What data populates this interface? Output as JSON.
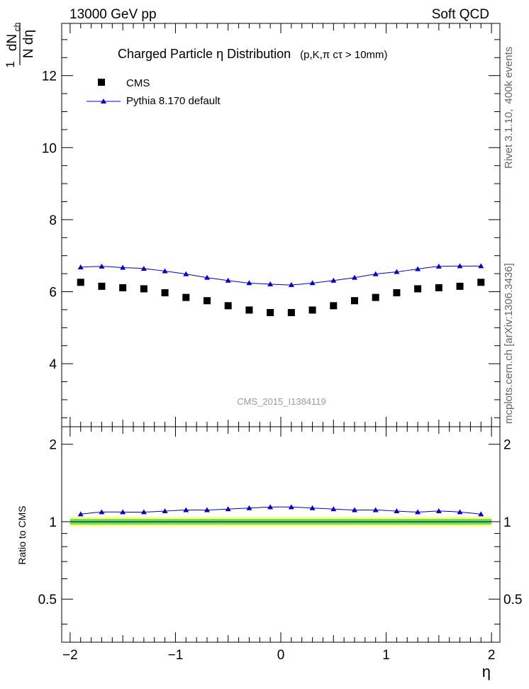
{
  "header": {
    "left": "13000 GeV pp",
    "right": "Soft QCD"
  },
  "side_labels": {
    "top": "Rivet 3.1.10,  400k events",
    "bottom": "mcplots.cern.ch [arXiv:1306.3436]"
  },
  "chart_data": {
    "type": "scatter",
    "title": "Charged Particle  η Distribution",
    "title_note": "(p,K,π cτ > 10mm)",
    "analysis_id": "CMS_2015_I1384119",
    "xlabel": "η",
    "xlim": [
      -2.08,
      2.08
    ],
    "x_ticks": [
      -2,
      -1,
      0,
      1,
      2
    ],
    "x_tick_labels": [
      "−2",
      "−1",
      "0",
      "1",
      "2"
    ],
    "main": {
      "ylabel_num": "1",
      "ylabel_frac_top": "dN",
      "ylabel_frac_sub": "ch",
      "ylabel_frac_bottom": "N dη",
      "ylim": [
        2.25,
        13.45
      ],
      "y_ticks": [
        4,
        6,
        8,
        10,
        12
      ],
      "y_tick_labels": [
        "4",
        "6",
        "8",
        "10",
        "12"
      ]
    },
    "ratio": {
      "ylabel": "Ratio to CMS",
      "ylim": [
        0.34,
        2.34
      ],
      "y_ticks": [
        0.5,
        1,
        2
      ],
      "y_tick_labels": [
        "0.5",
        "1",
        "2"
      ]
    },
    "legend": [
      {
        "name": "CMS",
        "marker": "square"
      },
      {
        "name": "Pythia 8.170 default",
        "marker": "triangle"
      }
    ],
    "x": [
      -1.9,
      -1.7,
      -1.5,
      -1.3,
      -1.1,
      -0.9,
      -0.7,
      -0.5,
      -0.3,
      -0.1,
      0.1,
      0.3,
      0.5,
      0.7,
      0.9,
      1.1,
      1.3,
      1.5,
      1.7,
      1.9
    ],
    "series": [
      {
        "name": "CMS",
        "color": "#000000",
        "values": [
          6.26,
          6.15,
          6.11,
          6.08,
          5.97,
          5.84,
          5.75,
          5.61,
          5.49,
          5.42,
          5.42,
          5.49,
          5.61,
          5.75,
          5.84,
          5.97,
          6.08,
          6.11,
          6.15,
          6.26
        ]
      },
      {
        "name": "Pythia 8.170 default",
        "color": "#0000cc",
        "values": [
          6.68,
          6.7,
          6.67,
          6.64,
          6.57,
          6.49,
          6.39,
          6.31,
          6.24,
          6.21,
          6.19,
          6.24,
          6.31,
          6.39,
          6.49,
          6.55,
          6.63,
          6.7,
          6.71,
          6.71
        ]
      }
    ],
    "ratio_values": [
      1.07,
      1.09,
      1.09,
      1.09,
      1.1,
      1.11,
      1.11,
      1.12,
      1.13,
      1.14,
      1.14,
      1.13,
      1.12,
      1.11,
      1.11,
      1.1,
      1.09,
      1.1,
      1.09,
      1.07
    ],
    "ratio_band_yellow_halfwidth": 0.045,
    "ratio_band_green_halfwidth": 0.025,
    "band_colors": {
      "yellow": "#ffff88",
      "green": "#66dd66"
    }
  }
}
